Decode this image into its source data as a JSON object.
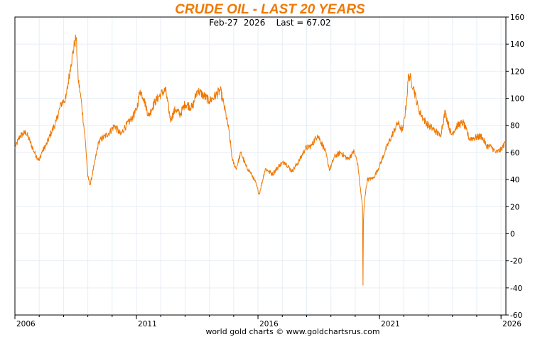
{
  "chart_data": {
    "type": "line",
    "title": "CRUDE OIL - LAST 20 YEARS",
    "subtitle": "Feb-27  2026    Last = 67.02",
    "footer": "world gold charts © www.goldchartsrus.com",
    "xlabel": "",
    "ylabel": "",
    "xlim": [
      2006.0,
      2026.2
    ],
    "ylim": [
      -60,
      160
    ],
    "x_ticks": [
      2006,
      2011,
      2016,
      2021,
      2026
    ],
    "x_tick_labels": [
      "2006",
      "2011",
      "2016",
      "2021",
      "2026"
    ],
    "y_ticks": [
      -60,
      -40,
      -20,
      0,
      20,
      40,
      60,
      80,
      100,
      120,
      140,
      160
    ],
    "y_tick_labels": [
      "-60",
      "-40",
      "-20",
      "0",
      "20",
      "40",
      "60",
      "80",
      "100",
      "120",
      "140",
      "160"
    ],
    "grid": true,
    "series": [
      {
        "color": "#f07800",
        "x": [
          2006.0,
          2006.2,
          2006.45,
          2006.6,
          2006.8,
          2007.0,
          2007.1,
          2007.3,
          2007.5,
          2007.7,
          2007.9,
          2008.1,
          2008.3,
          2008.45,
          2008.52,
          2008.6,
          2008.75,
          2008.9,
          2009.0,
          2009.1,
          2009.25,
          2009.45,
          2009.7,
          2009.9,
          2010.1,
          2010.35,
          2010.5,
          2010.8,
          2011.0,
          2011.15,
          2011.3,
          2011.5,
          2011.75,
          2012.0,
          2012.2,
          2012.4,
          2012.6,
          2012.8,
          2013.0,
          2013.3,
          2013.5,
          2013.7,
          2014.0,
          2014.2,
          2014.45,
          2014.6,
          2014.8,
          2014.95,
          2015.1,
          2015.3,
          2015.5,
          2015.7,
          2015.9,
          2016.05,
          2016.3,
          2016.6,
          2016.9,
          2017.1,
          2017.4,
          2017.7,
          2017.95,
          2018.2,
          2018.45,
          2018.75,
          2018.95,
          2019.15,
          2019.4,
          2019.7,
          2019.95,
          2020.1,
          2020.2,
          2020.3,
          2020.32,
          2020.34,
          2020.38,
          2020.5,
          2020.75,
          2021.0,
          2021.25,
          2021.5,
          2021.75,
          2021.95,
          2022.1,
          2022.2,
          2022.4,
          2022.6,
          2022.8,
          2023.0,
          2023.3,
          2023.5,
          2023.7,
          2023.95,
          2024.2,
          2024.45,
          2024.7,
          2024.95,
          2025.2,
          2025.4,
          2025.6,
          2025.8,
          2026.0,
          2026.16
        ],
        "values": [
          63,
          72,
          75,
          69,
          60,
          54,
          60,
          66,
          75,
          83,
          96,
          100,
          125,
          140,
          145,
          115,
          95,
          68,
          42,
          36,
          50,
          68,
          72,
          75,
          80,
          73,
          78,
          85,
          91,
          106,
          100,
          87,
          97,
          103,
          106,
          84,
          92,
          88,
          96,
          93,
          106,
          103,
          98,
          101,
          106,
          95,
          77,
          54,
          48,
          60,
          50,
          45,
          38,
          29,
          48,
          44,
          51,
          53,
          46,
          54,
          63,
          65,
          73,
          62,
          47,
          57,
          60,
          55,
          61,
          52,
          35,
          20,
          -38,
          10,
          25,
          40,
          41,
          50,
          62,
          72,
          82,
          76,
          95,
          118,
          108,
          92,
          85,
          80,
          76,
          72,
          90,
          73,
          80,
          82,
          70,
          71,
          72,
          65,
          64,
          60,
          62,
          67.02
        ]
      }
    ]
  }
}
